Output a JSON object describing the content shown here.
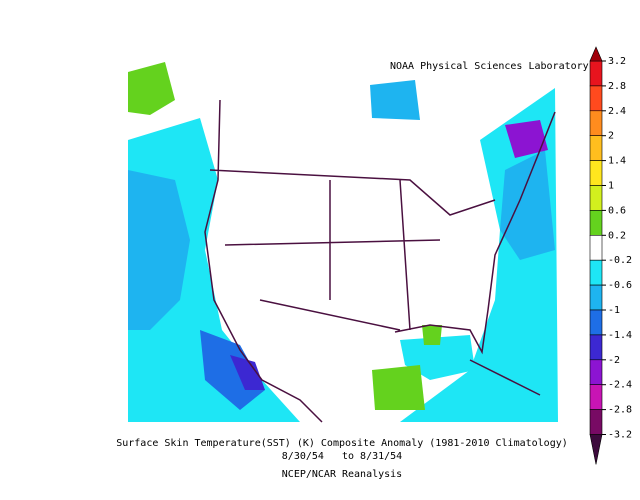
{
  "header": {
    "credit": "NOAA Physical Sciences Laboratory"
  },
  "caption": {
    "title": "Surface Skin Temperature(SST) (K) Composite Anomaly (1981-2010 Climatology)",
    "dates": "8/30/54   to 8/31/54",
    "source": "NCEP/NCAR Reanalysis"
  },
  "colorbar": {
    "ticks": [
      3.2,
      2.8,
      2.4,
      2,
      1.4,
      1,
      0.6,
      0.2,
      -0.2,
      -0.6,
      -1,
      -1.4,
      -2,
      -2.4,
      -2.8,
      -3.2
    ],
    "colors": [
      "#e8141e",
      "#ff4a1e",
      "#ff8c1e",
      "#ffbe1e",
      "#ffe61e",
      "#d2f01e",
      "#64d21e",
      "#ffffff",
      "#1ee6f5",
      "#1eb4f0",
      "#1e6ee6",
      "#3c28d2",
      "#8c14d2",
      "#c814b4",
      "#780a64"
    ],
    "over_color": "#a0000a",
    "under_color": "#3c0a3c"
  }
}
